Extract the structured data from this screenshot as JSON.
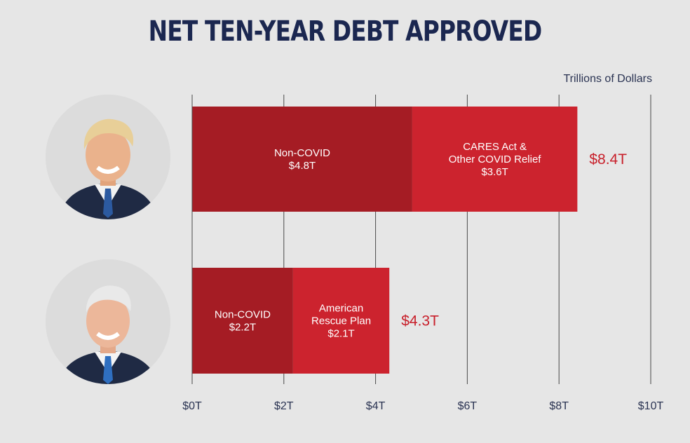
{
  "title": "NET TEN-YEAR DEBT APPROVED",
  "unit_label": "Trillions of Dollars",
  "colors": {
    "background": "#e6e6e6",
    "title": "#1b2750",
    "non_covid": "#a51c24",
    "covid": "#cc232e",
    "total_text": "#c8202b",
    "grid": "#4a4a4a",
    "axis_text": "#2a3352"
  },
  "chart_data": {
    "type": "bar",
    "orientation": "horizontal",
    "stacked": true,
    "title": "NET TEN-YEAR DEBT APPROVED",
    "xlabel": "Trillions of Dollars",
    "xlim": [
      0,
      10
    ],
    "xticks": [
      "$0T",
      "$2T",
      "$4T",
      "$6T",
      "$8T",
      "$10T"
    ],
    "grid": "vertical",
    "bars": [
      {
        "segments": [
          {
            "lines": [
              "Non-COVID",
              "$4.8T"
            ],
            "value": 4.8,
            "color": "#a51c24"
          },
          {
            "lines": [
              "CARES Act &",
              "Other COVID Relief",
              "$3.6T"
            ],
            "value": 3.6,
            "color": "#cc232e"
          }
        ],
        "total_label": "$8.4T",
        "total": 8.4
      },
      {
        "segments": [
          {
            "lines": [
              "Non-COVID",
              "$2.2T"
            ],
            "value": 2.2,
            "color": "#a51c24"
          },
          {
            "lines": [
              "American",
              "Rescue Plan",
              "$2.1T"
            ],
            "value": 2.1,
            "color": "#cc232e"
          }
        ],
        "total_label": "$4.3T",
        "total": 4.3
      }
    ]
  }
}
